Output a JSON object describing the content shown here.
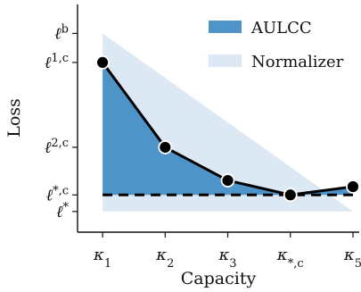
{
  "chart_data": {
    "type": "line",
    "title": "",
    "xlabel": "Capacity",
    "ylabel": "Loss",
    "x_ticks": [
      {
        "main": "κ",
        "sub": "1"
      },
      {
        "main": "κ",
        "sub": "2"
      },
      {
        "main": "κ",
        "sub": "3"
      },
      {
        "main": "κ",
        "sub": "*,c"
      },
      {
        "main": "κ",
        "sub": "5"
      }
    ],
    "y_ticks": [
      {
        "main": "ℓ",
        "sup": "b",
        "value": 0.86
      },
      {
        "main": "ℓ",
        "sup": "1,c",
        "value": 0.72
      },
      {
        "main": "ℓ",
        "sup": "2,c",
        "value": 0.31
      },
      {
        "main": "ℓ",
        "sup": "*,c",
        "value": 0.08
      },
      {
        "main": "ℓ",
        "sup": "*",
        "value": 0.0
      }
    ],
    "ylim": [
      -0.1,
      1.0
    ],
    "xlim": [
      0.6,
      5.1
    ],
    "loss_curve": {
      "x": [
        1,
        2,
        3,
        4,
        5
      ],
      "y": [
        0.72,
        0.31,
        0.15,
        0.08,
        0.12
      ]
    },
    "reference_level": 0.08,
    "normalizer_triangle": [
      [
        1,
        0.86
      ],
      [
        1,
        0.0
      ],
      [
        5,
        0.0
      ]
    ],
    "legend": [
      {
        "label": "AULCC",
        "color": "#4f94c8"
      },
      {
        "label": "Normalizer",
        "color": "#dce8f3"
      }
    ],
    "colors": {
      "aulcc": "#4f94c8",
      "normalizer": "#dce8f3",
      "line": "#000000",
      "dash": "#000000",
      "point_fill": "#000000",
      "point_stroke": "#ffffff"
    }
  }
}
